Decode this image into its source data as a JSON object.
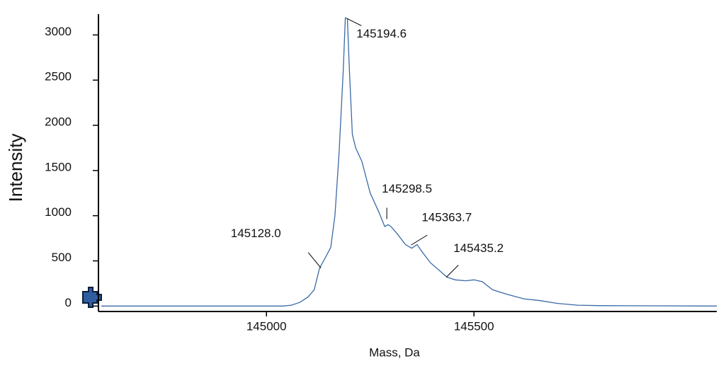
{
  "chart_data": {
    "type": "line",
    "x_label": "Mass, Da",
    "y_label": "Intensity",
    "color": "#3b6aa6",
    "x": [
      144602,
      145040,
      145060,
      145080,
      145100,
      145115,
      145128,
      145140,
      145155,
      145165,
      145175,
      145185,
      145190,
      145195,
      145200,
      145207,
      145215,
      145230,
      145250,
      145270,
      145285,
      145293,
      145300,
      145315,
      145335,
      145350,
      145363,
      145375,
      145395,
      145420,
      145435,
      145455,
      145480,
      145500,
      145520,
      145545,
      145580,
      145620,
      145660,
      145700,
      145750,
      145800,
      146085
    ],
    "values": [
      0,
      0,
      10,
      40,
      100,
      180,
      420,
      520,
      650,
      1000,
      1700,
      2600,
      3190,
      3180,
      2600,
      1900,
      1750,
      1600,
      1250,
      1050,
      880,
      900,
      880,
      800,
      680,
      640,
      680,
      600,
      480,
      380,
      320,
      290,
      280,
      290,
      270,
      180,
      130,
      80,
      60,
      30,
      10,
      5,
      0
    ],
    "peak_labels": [
      {
        "value": 145128.0,
        "label": "145128.0"
      },
      {
        "value": 145194.6,
        "label": "145194.6"
      },
      {
        "value": 145298.5,
        "label": "145298.5"
      },
      {
        "value": 145363.7,
        "label": "145363.7"
      },
      {
        "value": 145435.2,
        "label": "145435.2"
      }
    ],
    "xlim": [
      144602,
      146085
    ],
    "ylim": [
      -60,
      3230
    ],
    "xticks": [
      145000,
      145500
    ],
    "yticks": [
      0,
      500,
      1000,
      1500,
      2000,
      2500,
      3000
    ]
  }
}
